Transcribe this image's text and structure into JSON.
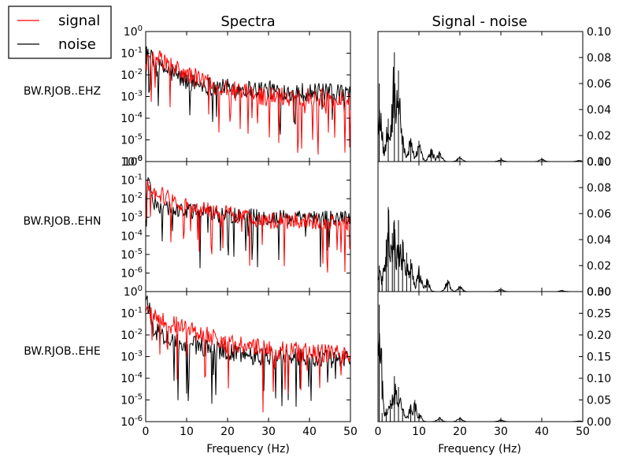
{
  "chart_data": {
    "type": "line",
    "column_titles": [
      "Spectra",
      "Signal - noise"
    ],
    "xlabel": "Frequency (Hz)",
    "xlim": [
      0,
      50
    ],
    "x_ticks": [
      "0",
      "10",
      "20",
      "30",
      "40",
      "50"
    ],
    "legend": {
      "placement": "top-left",
      "entries": [
        {
          "label": "signal",
          "color": "#ff0000"
        },
        {
          "label": "noise",
          "color": "#000000"
        }
      ]
    },
    "rows": [
      {
        "station": "BW.RJOB..EHZ",
        "spectra": {
          "yscale": "log",
          "ylim_exp": [
            -6,
            0
          ],
          "ytick_labels": [
            {
              "base": "10",
              "exp": "-6",
              "pos": -6
            },
            {
              "base": "10",
              "exp": "-5",
              "pos": -5
            },
            {
              "base": "10",
              "exp": "-4",
              "pos": -4
            },
            {
              "base": "10",
              "exp": "-3",
              "pos": -3
            },
            {
              "base": "10",
              "exp": "-2",
              "pos": -2
            },
            {
              "base": "10",
              "exp": "-1",
              "pos": -1
            },
            {
              "base": "10",
              "exp": "0",
              "pos": 0
            }
          ],
          "signal": {
            "x": [
              0.5,
              2,
              4,
              6,
              8,
              10,
              15,
              20,
              30,
              40,
              50
            ],
            "y_exp": [
              -1.4,
              -1.3,
              -1.3,
              -1.6,
              -1.8,
              -2.0,
              -2.3,
              -2.7,
              -3.0,
              -3.0,
              -3.2
            ]
          },
          "noise": {
            "x": [
              0.5,
              2,
              4,
              6,
              8,
              10,
              15,
              20,
              30,
              40,
              50
            ],
            "y_exp": [
              -0.8,
              -1.6,
              -1.7,
              -1.9,
              -2.1,
              -2.3,
              -2.5,
              -2.6,
              -2.7,
              -2.8,
              -2.9
            ]
          }
        },
        "diff": {
          "ylim": [
            0,
            0.1
          ],
          "yticks": [
            "0.00",
            "0.02",
            "0.04",
            "0.06",
            "0.08",
            "0.10"
          ],
          "peaks": [
            [
              0.3,
              0.06
            ],
            [
              2.5,
              0.033
            ],
            [
              4,
              0.084
            ],
            [
              5,
              0.07
            ],
            [
              6,
              0.02
            ],
            [
              8,
              0.018
            ],
            [
              10,
              0.016
            ],
            [
              13,
              0.01
            ],
            [
              15,
              0.008
            ],
            [
              20,
              0.004
            ],
            [
              30,
              0.002
            ],
            [
              40,
              0.002
            ],
            [
              49,
              0.001
            ]
          ]
        }
      },
      {
        "station": "BW.RJOB..EHN",
        "spectra": {
          "yscale": "log",
          "ylim_exp": [
            -7,
            0
          ],
          "ytick_labels": [
            {
              "base": "10",
              "exp": "-6",
              "pos": -6
            },
            {
              "base": "10",
              "exp": "-5",
              "pos": -5
            },
            {
              "base": "10",
              "exp": "-4",
              "pos": -4
            },
            {
              "base": "10",
              "exp": "-3",
              "pos": -3
            },
            {
              "base": "10",
              "exp": "-2",
              "pos": -2
            },
            {
              "base": "10",
              "exp": "-1",
              "pos": -1
            },
            {
              "base": "10",
              "exp": "0",
              "pos": 0
            }
          ],
          "signal": {
            "x": [
              0.5,
              2,
              4,
              6,
              8,
              10,
              15,
              20,
              30,
              40,
              50
            ],
            "y_exp": [
              -1.4,
              -1.7,
              -1.8,
              -2.0,
              -2.2,
              -2.4,
              -2.6,
              -2.8,
              -3.2,
              -3.2,
              -3.3
            ]
          },
          "noise": {
            "x": [
              0.5,
              2,
              4,
              6,
              8,
              10,
              15,
              20,
              30,
              40,
              50
            ],
            "y_exp": [
              -1.2,
              -2.2,
              -2.4,
              -2.5,
              -2.6,
              -2.7,
              -2.8,
              -2.9,
              -3.0,
              -3.1,
              -3.0
            ]
          }
        },
        "diff": {
          "ylim": [
            0,
            0.1
          ],
          "yticks": [
            "0.00",
            "0.02",
            "0.04",
            "0.06",
            "0.08",
            "0.10"
          ],
          "peaks": [
            [
              0.3,
              0.02
            ],
            [
              1,
              0.012
            ],
            [
              2,
              0.04
            ],
            [
              2.5,
              0.065
            ],
            [
              3.5,
              0.045
            ],
            [
              4,
              0.055
            ],
            [
              5,
              0.055
            ],
            [
              6,
              0.04
            ],
            [
              7,
              0.03
            ],
            [
              8,
              0.025
            ],
            [
              10,
              0.02
            ],
            [
              12,
              0.01
            ],
            [
              17,
              0.009
            ],
            [
              20,
              0.004
            ],
            [
              30,
              0.002
            ],
            [
              45,
              0.001
            ]
          ]
        }
      },
      {
        "station": "BW.RJOB..EHE",
        "spectra": {
          "yscale": "log",
          "ylim_exp": [
            -6,
            0
          ],
          "ytick_labels": [
            {
              "base": "10",
              "exp": "-6",
              "pos": -6
            },
            {
              "base": "10",
              "exp": "-5",
              "pos": -5
            },
            {
              "base": "10",
              "exp": "-4",
              "pos": -4
            },
            {
              "base": "10",
              "exp": "-3",
              "pos": -3
            },
            {
              "base": "10",
              "exp": "-2",
              "pos": -2
            },
            {
              "base": "10",
              "exp": "-1",
              "pos": -1
            },
            {
              "base": "10",
              "exp": "0",
              "pos": 0
            }
          ],
          "signal": {
            "x": [
              0.5,
              2,
              4,
              6,
              8,
              10,
              15,
              20,
              30,
              40,
              50
            ],
            "y_exp": [
              -0.8,
              -1.2,
              -1.3,
              -1.5,
              -1.6,
              -1.7,
              -2.0,
              -2.4,
              -2.7,
              -2.8,
              -2.9
            ]
          },
          "noise": {
            "x": [
              0.5,
              2,
              4,
              6,
              8,
              10,
              15,
              20,
              30,
              40,
              50
            ],
            "y_exp": [
              -0.5,
              -1.8,
              -2.0,
              -2.2,
              -2.3,
              -2.4,
              -2.6,
              -2.8,
              -3.0,
              -3.1,
              -3.1
            ]
          }
        },
        "diff": {
          "ylim": [
            0,
            0.3
          ],
          "yticks": [
            "0.00",
            "0.05",
            "0.10",
            "0.15",
            "0.20",
            "0.25",
            "0.30"
          ],
          "peaks": [
            [
              0.3,
              0.27
            ],
            [
              1,
              0.02
            ],
            [
              2,
              0.03
            ],
            [
              3,
              0.05
            ],
            [
              4,
              0.105
            ],
            [
              5,
              0.08
            ],
            [
              6,
              0.03
            ],
            [
              8,
              0.04
            ],
            [
              9,
              0.05
            ],
            [
              10,
              0.02
            ],
            [
              15,
              0.01
            ],
            [
              20,
              0.01
            ],
            [
              30,
              0.005
            ],
            [
              49,
              0.002
            ]
          ]
        }
      }
    ]
  }
}
